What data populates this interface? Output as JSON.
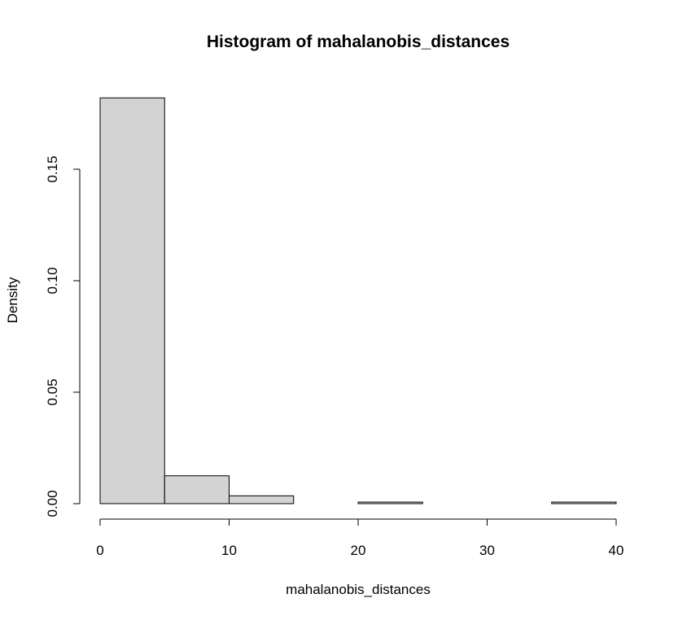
{
  "chart_data": {
    "type": "bar",
    "subtype": "histogram",
    "title": "Histogram of mahalanobis_distances",
    "xlabel": "mahalanobis_distances",
    "ylabel": "Density",
    "bins": [
      {
        "x0": 0,
        "x1": 5,
        "density": 0.182
      },
      {
        "x0": 5,
        "x1": 10,
        "density": 0.0125
      },
      {
        "x0": 10,
        "x1": 15,
        "density": 0.0035
      },
      {
        "x0": 15,
        "x1": 20,
        "density": 0
      },
      {
        "x0": 20,
        "x1": 25,
        "density": 0.0007
      },
      {
        "x0": 25,
        "x1": 30,
        "density": 0
      },
      {
        "x0": 30,
        "x1": 35,
        "density": 0
      },
      {
        "x0": 35,
        "x1": 40,
        "density": 0.0007
      }
    ],
    "xlim": [
      0,
      40
    ],
    "ylim": [
      0,
      0.15
    ],
    "xticks": [
      0,
      10,
      20,
      30,
      40
    ],
    "xtick_labels": [
      "0",
      "10",
      "20",
      "30",
      "40"
    ],
    "yticks": [
      0,
      0.05,
      0.1,
      0.15
    ],
    "ytick_labels": [
      "0.00",
      "0.05",
      "0.10",
      "0.15"
    ],
    "bar_fill": "#d3d3d3",
    "bar_stroke": "#000000",
    "grid": false,
    "legend": "none"
  }
}
